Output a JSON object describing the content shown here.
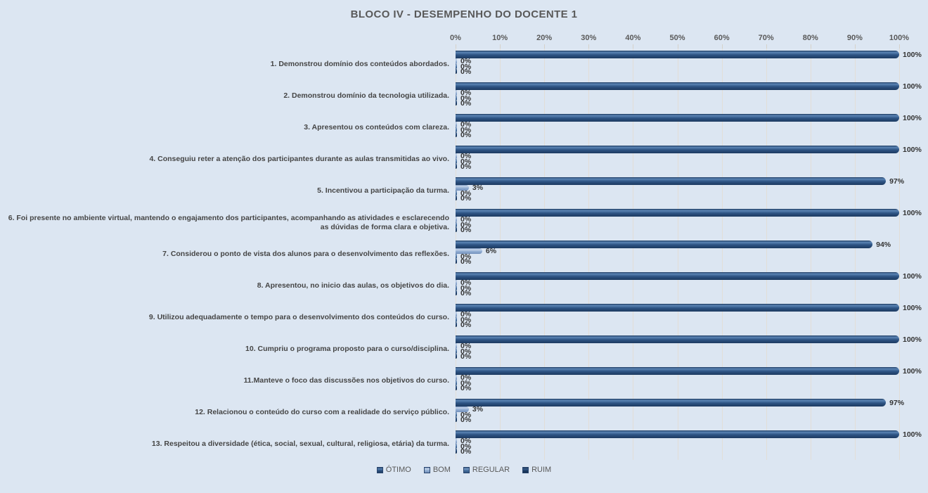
{
  "chart_data": {
    "type": "bar",
    "orientation": "horizontal",
    "title": "BLOCO IV - DESEMPENHO DO DOCENTE 1",
    "axis_position": "top",
    "legend_position": "bottom",
    "grid": true,
    "xlim": [
      0,
      100
    ],
    "value_suffix": "%",
    "x_ticks": [
      "0%",
      "10%",
      "20%",
      "30%",
      "40%",
      "50%",
      "60%",
      "70%",
      "80%",
      "90%",
      "100%"
    ],
    "categories": [
      "1. Demonstrou domínio dos conteúdos abordados.",
      "2. Demonstrou domínio da tecnologia utilizada.",
      "3. Apresentou os conteúdos com clareza.",
      "4. Conseguiu reter a atenção dos participantes durante as aulas transmitidas ao vivo.",
      "5. Incentivou a participação da turma.",
      "6. Foi presente no ambiente virtual, mantendo o engajamento dos participantes, acompanhando as atividades e esclarecendo as dúvidas de forma clara e objetiva.",
      "7. Considerou o ponto de vista dos alunos para o desenvolvimento das reflexões.",
      "8. Apresentou, no inicio das aulas, os objetivos do dia.",
      "9. Utilizou adequadamente o tempo para o desenvolvimento dos conteúdos do curso.",
      "10. Cumpriu o programa proposto para o curso/disciplina.",
      "11.Manteve o foco das discussões nos objetivos do curso.",
      "12. Relacionou o conteúdo do curso com a realidade do serviço público.",
      "13. Respeitou a diversidade (ética, social, sexual, cultural, religiosa, etária) da turma."
    ],
    "series": [
      {
        "name": "ÓTIMO",
        "key": "otimo",
        "values": [
          100,
          100,
          100,
          100,
          97,
          100,
          94,
          100,
          100,
          100,
          100,
          97,
          100
        ]
      },
      {
        "name": "BOM",
        "key": "bom",
        "values": [
          0,
          0,
          0,
          0,
          3,
          0,
          6,
          0,
          0,
          0,
          0,
          3,
          0
        ]
      },
      {
        "name": "REGULAR",
        "key": "regular",
        "values": [
          0,
          0,
          0,
          0,
          0,
          0,
          0,
          0,
          0,
          0,
          0,
          0,
          0
        ]
      },
      {
        "name": "RUIM",
        "key": "ruim",
        "values": [
          0,
          0,
          0,
          0,
          0,
          0,
          0,
          0,
          0,
          0,
          0,
          0,
          0
        ]
      }
    ]
  },
  "colors": {
    "background": "#dce6f2",
    "gridline": "#e2ded7",
    "title": "#595959",
    "category_label": "#454545",
    "axis_label": "#595959",
    "data_label": "#333333",
    "series": {
      "otimo": {
        "light": "#5b85b5",
        "base": "#2e5484",
        "dark": "#1c3a60"
      },
      "bom": {
        "light": "#c6d5ea",
        "base": "#92aed3",
        "dark": "#7491bc"
      },
      "regular": {
        "light": "#7a9cc6",
        "base": "#49719f",
        "dark": "#2f5582"
      },
      "ruim": {
        "light": "#3d618f",
        "base": "#20406b",
        "dark": "#132b4a"
      }
    }
  }
}
